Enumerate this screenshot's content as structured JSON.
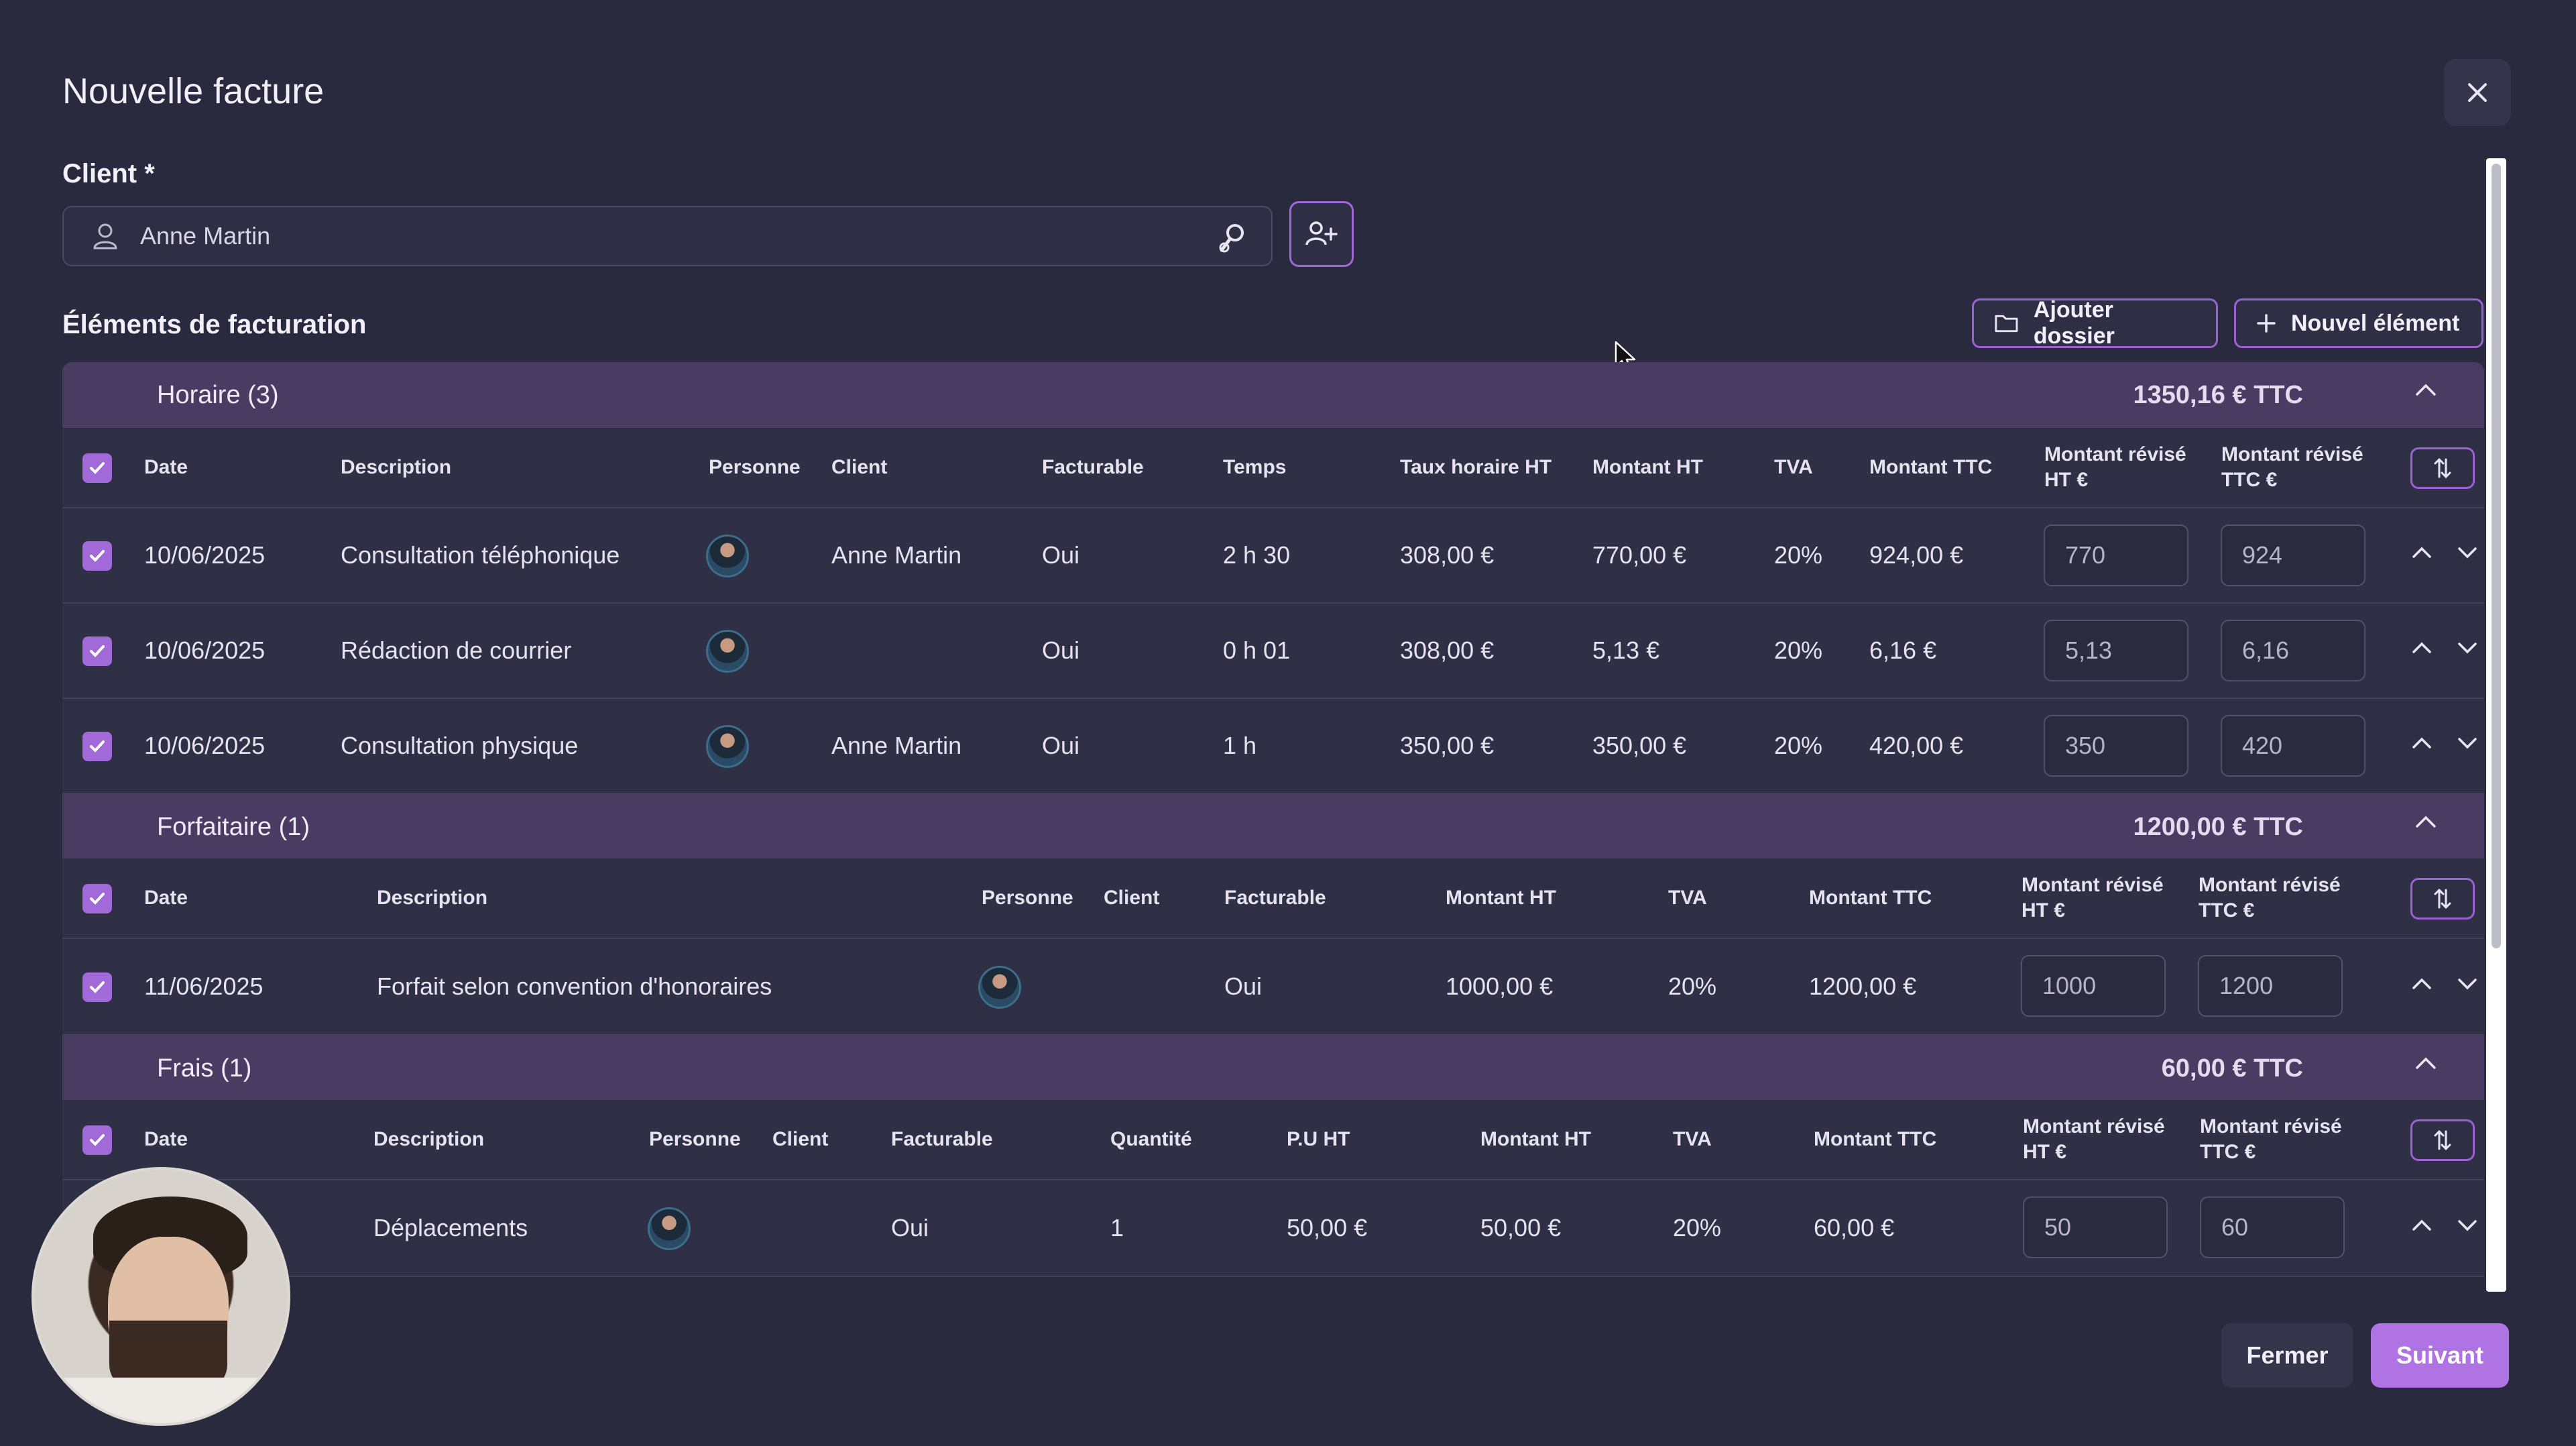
{
  "modal": {
    "title": "Nouvelle facture"
  },
  "client": {
    "label": "Client *",
    "value": "Anne Martin"
  },
  "billing": {
    "label": "Éléments de facturation",
    "add_folder": "Ajouter dossier",
    "new_item": "Nouvel élément"
  },
  "horaire": {
    "name": "Horaire (3)",
    "total": "1350,16 € TTC",
    "headers": [
      "Date",
      "Description",
      "Personne",
      "Client",
      "Facturable",
      "Temps",
      "Taux horaire HT",
      "Montant HT",
      "TVA",
      "Montant TTC",
      "Montant révisé HT €",
      "Montant révisé TTC €"
    ],
    "rows": [
      {
        "date": "10/06/2025",
        "description": "Consultation téléphonique",
        "client": "Anne Martin",
        "facturable": "Oui",
        "temps": "2 h 30",
        "taux": "308,00 €",
        "ht": "770,00 €",
        "tva": "20%",
        "ttc": "924,00 €",
        "rev_ht": "770",
        "rev_ttc": "924"
      },
      {
        "date": "10/06/2025",
        "description": "Rédaction de courrier",
        "client": "",
        "facturable": "Oui",
        "temps": "0 h 01",
        "taux": "308,00 €",
        "ht": "5,13 €",
        "tva": "20%",
        "ttc": "6,16 €",
        "rev_ht": "5,13",
        "rev_ttc": "6,16"
      },
      {
        "date": "10/06/2025",
        "description": "Consultation physique",
        "client": "Anne Martin",
        "facturable": "Oui",
        "temps": "1 h",
        "taux": "350,00 €",
        "ht": "350,00 €",
        "tva": "20%",
        "ttc": "420,00 €",
        "rev_ht": "350",
        "rev_ttc": "420"
      }
    ]
  },
  "forfaitaire": {
    "name": "Forfaitaire (1)",
    "total": "1200,00 € TTC",
    "headers": [
      "Date",
      "Description",
      "Personne",
      "Client",
      "Facturable",
      "Montant HT",
      "TVA",
      "Montant TTC",
      "Montant révisé HT €",
      "Montant révisé TTC €"
    ],
    "rows": [
      {
        "date": "11/06/2025",
        "description": "Forfait selon convention d'honoraires",
        "client": "",
        "facturable": "Oui",
        "ht": "1000,00 €",
        "tva": "20%",
        "ttc": "1200,00 €",
        "rev_ht": "1000",
        "rev_ttc": "1200"
      }
    ]
  },
  "frais": {
    "name": "Frais (1)",
    "total": "60,00 € TTC",
    "headers": [
      "Date",
      "Description",
      "Personne",
      "Client",
      "Facturable",
      "Quantité",
      "P.U HT",
      "Montant HT",
      "TVA",
      "Montant TTC",
      "Montant révisé HT €",
      "Montant révisé TTC €"
    ],
    "rows": [
      {
        "description": "Déplacements",
        "client": "",
        "facturable": "Oui",
        "quantite": "1",
        "pu": "50,00 €",
        "ht": "50,00 €",
        "tva": "20%",
        "ttc": "60,00 €",
        "rev_ht": "50",
        "rev_ttc": "60"
      }
    ]
  },
  "footer": {
    "close": "Fermer",
    "next": "Suivant"
  },
  "colors": {
    "accent": "#a26ad8",
    "section_bg": "#4a3b62",
    "background": "#2a2a3f"
  },
  "icons": [
    "close-icon",
    "user-icon",
    "search-user-icon",
    "add-user-icon",
    "folder-icon",
    "plus-icon",
    "chevron-up-icon",
    "chevron-down-icon",
    "sort-icon",
    "check-icon"
  ]
}
